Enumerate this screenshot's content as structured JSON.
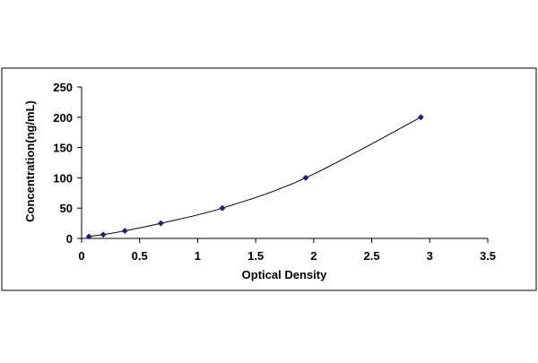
{
  "chart_data": {
    "type": "scatter",
    "title": "",
    "xlabel": "Optical Density",
    "ylabel": "Concentration(ng/mL)",
    "xlim": [
      0,
      3.5
    ],
    "ylim": [
      0,
      250
    ],
    "x_ticks": [
      0,
      0.5,
      1,
      1.5,
      2,
      2.5,
      3,
      3.5
    ],
    "x_tick_labels": [
      "0",
      "0.5",
      "1",
      "1.5",
      "2",
      "2.5",
      "3",
      "3.5"
    ],
    "y_ticks": [
      0,
      50,
      100,
      150,
      200,
      250
    ],
    "y_tick_labels": [
      "0",
      "50",
      "100",
      "150",
      "200",
      "250"
    ],
    "grid": false,
    "legend": "none",
    "series": [
      {
        "x": [
          0.063,
          0.187,
          0.373,
          0.683,
          1.213,
          1.931,
          2.923
        ],
        "y": [
          3.125,
          6.25,
          12.5,
          25,
          50,
          100,
          200
        ],
        "marker": "diamond",
        "trendline": "smooth",
        "color": "#1f1f7a"
      }
    ],
    "colors": {
      "marker": "#1f1f7a",
      "line": "#000000",
      "border": "#000000"
    }
  }
}
